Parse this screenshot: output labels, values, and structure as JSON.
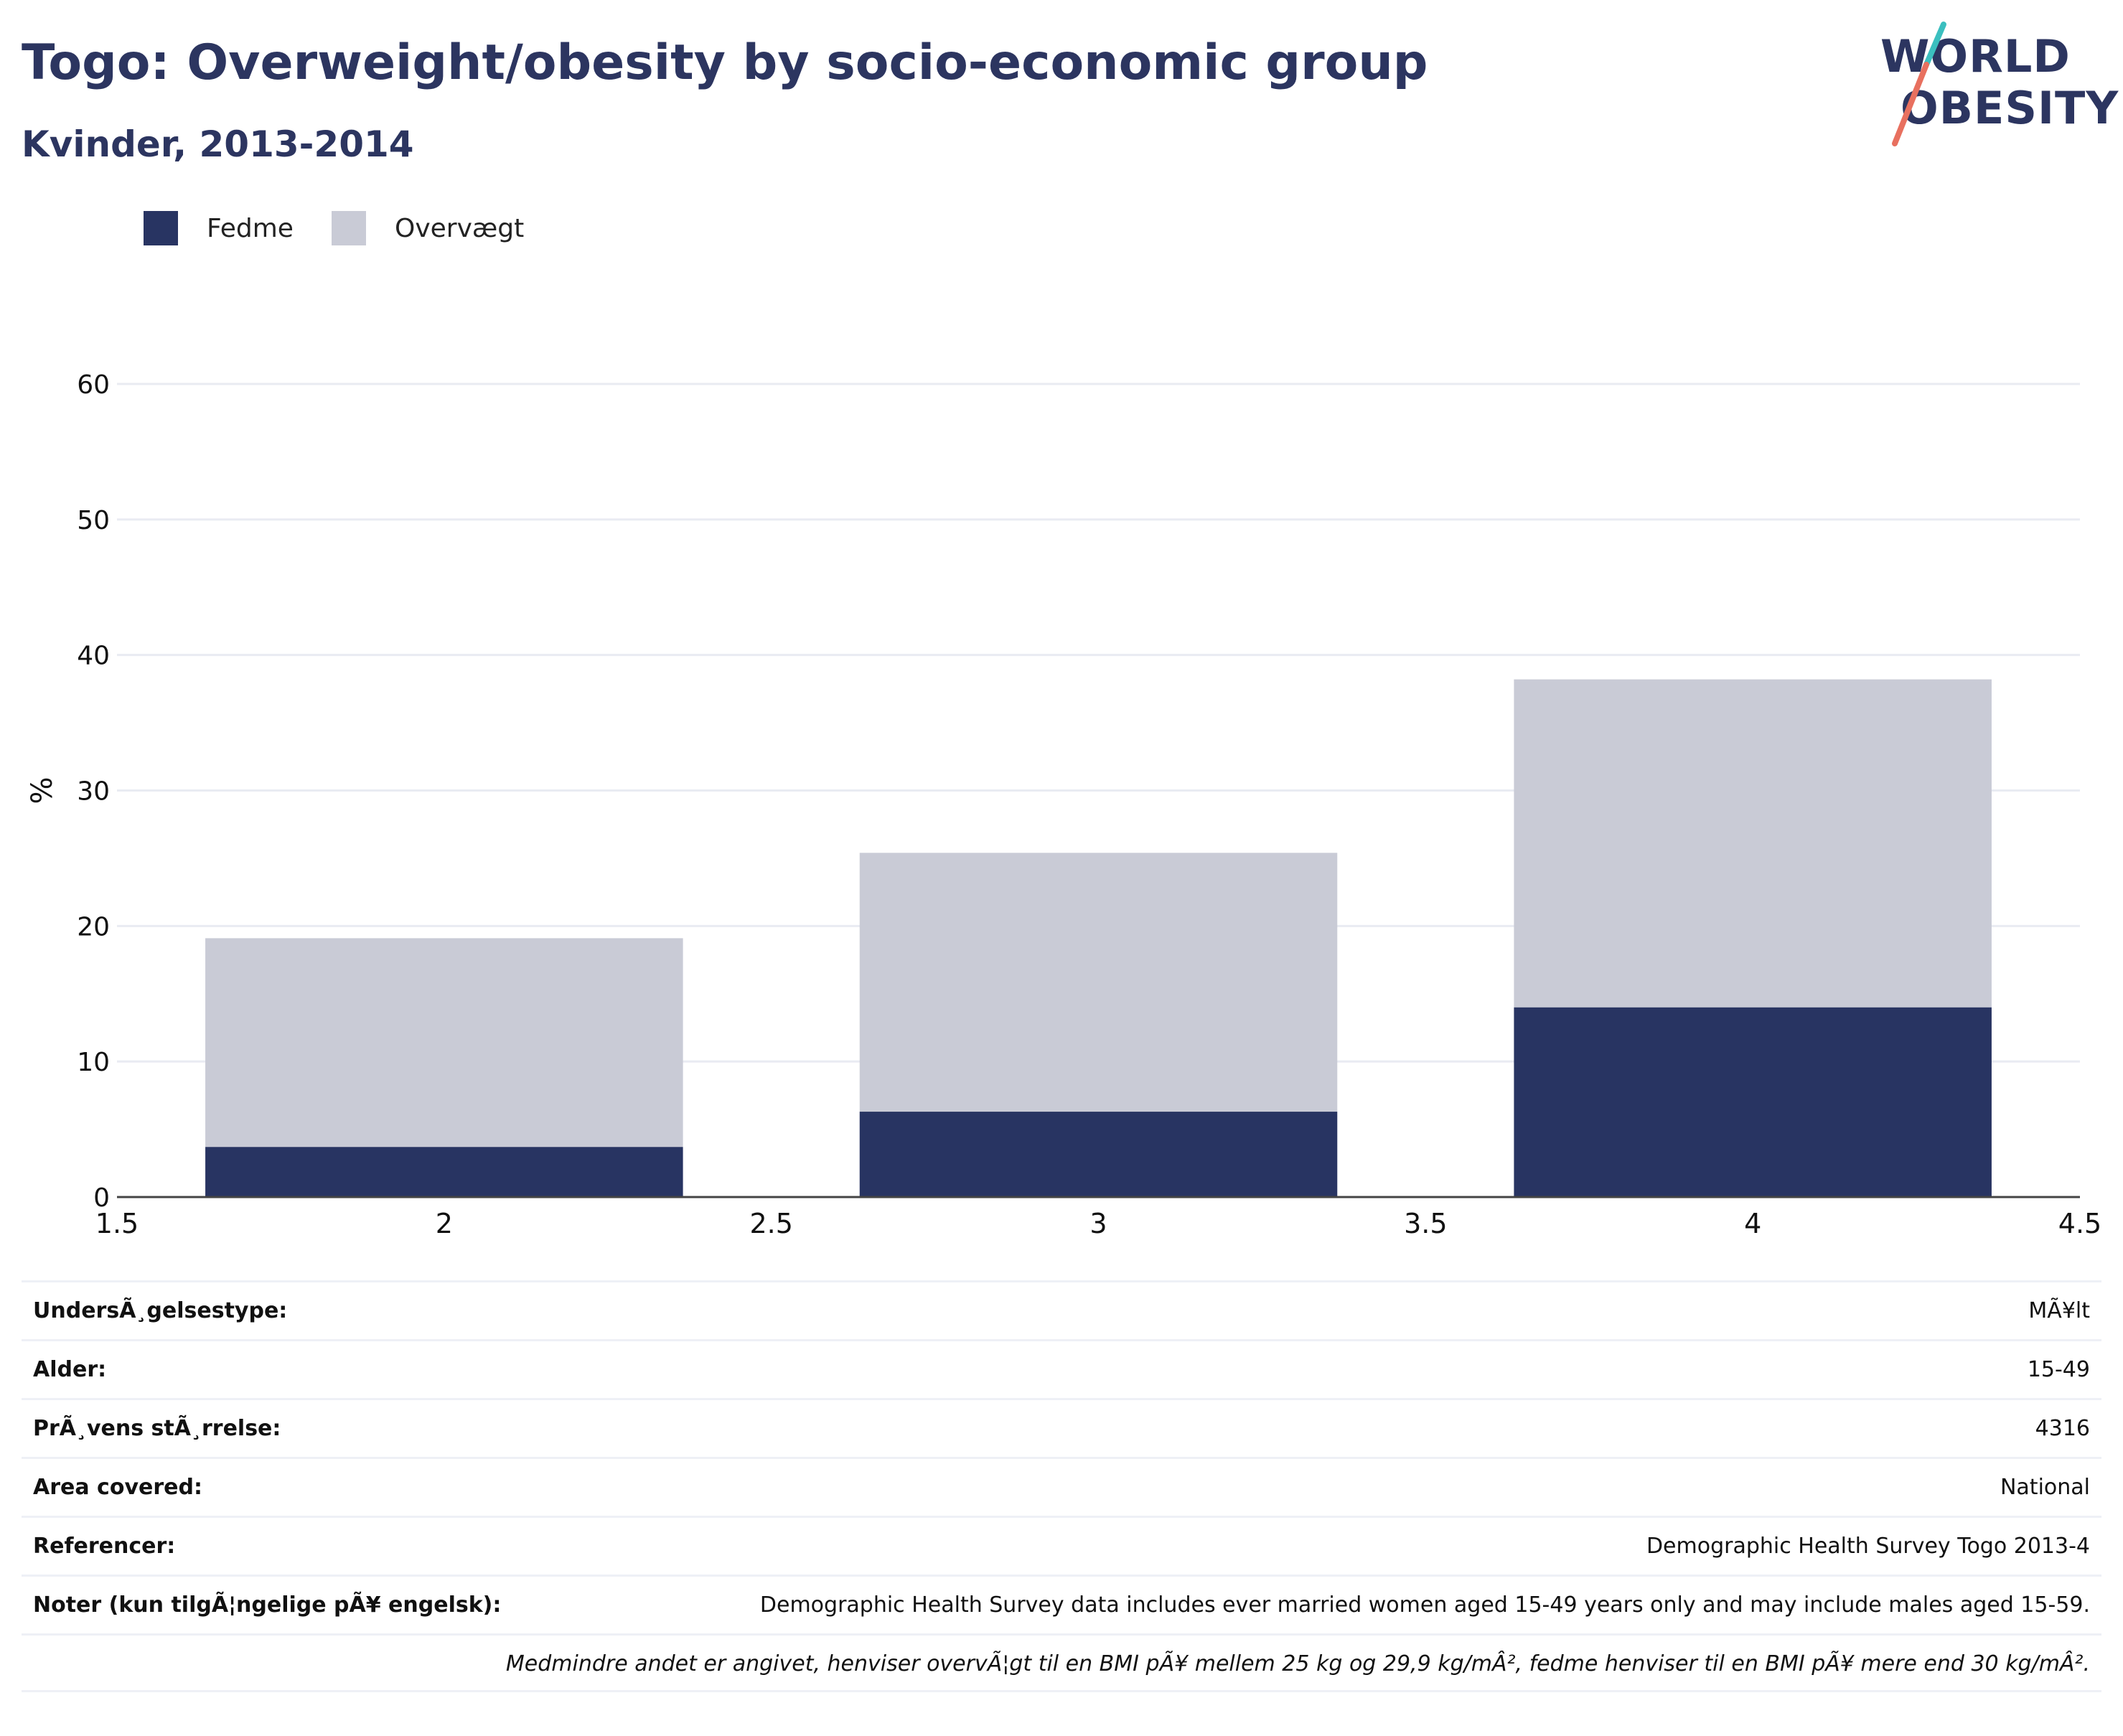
{
  "header": {
    "title": "Togo: Overweight/obesity by socio-economic group",
    "subtitle": "Kvinder, 2013-2014"
  },
  "logo": {
    "line1": "WORLD",
    "line2": "OBESITY",
    "slash_color_top": "#3bbfbf",
    "slash_color_bottom": "#e8705f"
  },
  "legend": [
    {
      "label": "Fedme",
      "color": "#283462"
    },
    {
      "label": "Overvægt",
      "color": "#c9cbd6"
    }
  ],
  "chart_data": {
    "type": "bar",
    "stacked": true,
    "x": [
      2,
      3,
      4
    ],
    "series": [
      {
        "name": "Fedme",
        "color": "#283462",
        "values": [
          3.7,
          6.3,
          14.0
        ]
      },
      {
        "name": "Overvægt",
        "color": "#c9cbd6",
        "values": [
          15.4,
          19.1,
          24.2
        ]
      }
    ],
    "xlim": [
      1.5,
      4.5
    ],
    "ylim": [
      0,
      65
    ],
    "xticks": [
      "1.5",
      "2",
      "2.5",
      "3",
      "3.5",
      "4",
      "4.5"
    ],
    "xtick_values": [
      1.5,
      2,
      2.5,
      3,
      3.5,
      4,
      4.5
    ],
    "yticks": [
      "0",
      "10",
      "20",
      "30",
      "40",
      "50",
      "60"
    ],
    "ytick_values": [
      0,
      10,
      20,
      30,
      40,
      50,
      60
    ],
    "ylabel": "%",
    "xlabel": "",
    "grid": true,
    "legend_position": "top-left"
  },
  "meta": [
    {
      "key": "UndersÃ¸gelsestype:",
      "value": "MÃ¥lt"
    },
    {
      "key": "Alder:",
      "value": "15-49"
    },
    {
      "key": "PrÃ¸vens stÃ¸rrelse:",
      "value": "4316"
    },
    {
      "key": "Area covered:",
      "value": "National"
    },
    {
      "key": "Referencer:",
      "value": "Demographic Health Survey Togo 2013-4"
    },
    {
      "key": "Noter (kun tilgÃ¦ngelige pÃ¥ engelsk):",
      "value": "Demographic Health Survey data includes ever married women aged 15-49 years only and may include males aged 15-59."
    },
    {
      "key": "",
      "value": "Medmindre andet er angivet, henviser overvÃ¦gt til en BMI pÃ¥ mellem 25 kg og 29,9 kg/mÂ², fedme henviser til en BMI pÃ¥ mere end 30 kg/mÂ².",
      "italic": true
    }
  ]
}
